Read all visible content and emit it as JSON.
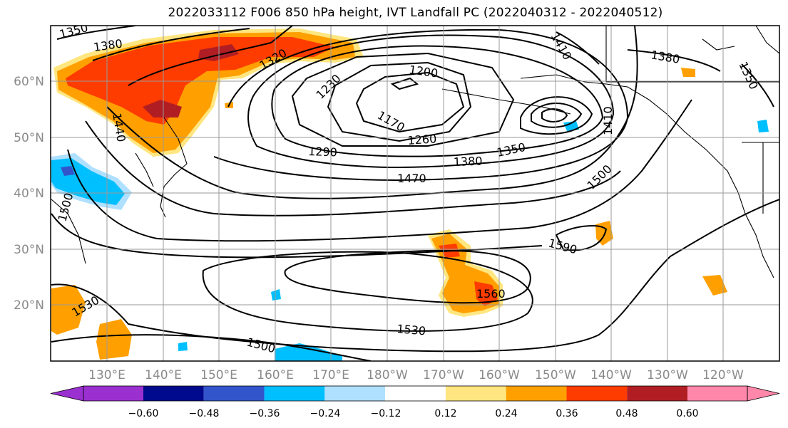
{
  "title": "2022033112 F006 850 hPa height, IVT Landfall PC (2022040312 - 2022040512)",
  "lat_labels": [
    "60°N",
    "50°N",
    "40°N",
    "30°N",
    "20°N"
  ],
  "lon_labels": [
    "130°E",
    "140°E",
    "150°E",
    "160°E",
    "170°E",
    "180°W",
    "170°W",
    "160°W",
    "150°W",
    "140°W",
    "130°W",
    "120°W"
  ],
  "contour_labels": [
    "1350",
    "1380",
    "1320",
    "1230",
    "1200",
    "1410",
    "1380",
    "1350",
    "1440",
    "1170",
    "1260",
    "1410",
    "1290",
    "1350",
    "1380",
    "1470",
    "1500",
    "1500",
    "1590",
    "1560",
    "1530",
    "1530",
    "1500"
  ],
  "colorbar": {
    "ticks": [
      "−0.60",
      "−0.48",
      "−0.36",
      "−0.24",
      "−0.12",
      "0.12",
      "0.24",
      "0.36",
      "0.48",
      "0.60"
    ],
    "colors": [
      "#9b30d0",
      "#000a8c",
      "#3255cc",
      "#00bfff",
      "#b0e0ff",
      "#ffffff",
      "#ffe680",
      "#ffa000",
      "#ff3c00",
      "#b01e23",
      "#ff88aa"
    ]
  },
  "fill_colors": {
    "pos1": "#ffe680",
    "pos2": "#ffa000",
    "pos3": "#ff3c00",
    "pos4": "#b01e23",
    "neg1": "#b0e0ff",
    "neg2": "#00bfff",
    "neg3": "#3255cc"
  }
}
